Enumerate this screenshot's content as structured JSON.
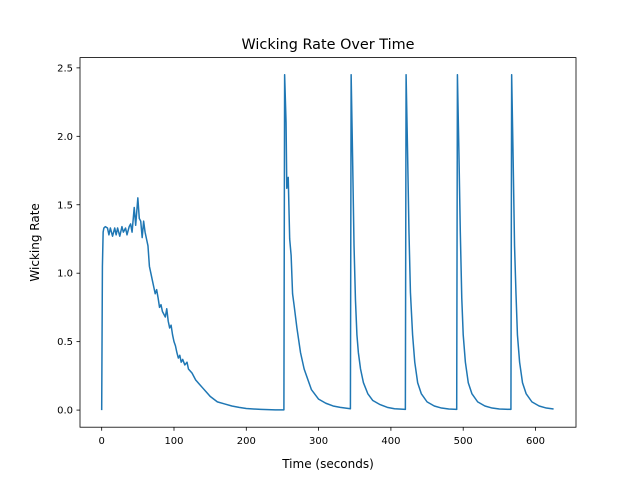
{
  "chart_data": {
    "type": "line",
    "title": "Wicking Rate Over Time",
    "xlabel": "Time (seconds)",
    "ylabel": "Wicking Rate",
    "xlim": [
      -30,
      656
    ],
    "ylim": [
      -0.125,
      2.575
    ],
    "xticks": [
      0,
      100,
      200,
      300,
      400,
      500,
      600
    ],
    "xtick_labels": [
      "0",
      "100",
      "200",
      "300",
      "400",
      "500",
      "600"
    ],
    "yticks": [
      0.0,
      0.5,
      1.0,
      1.5,
      2.0,
      2.5
    ],
    "ytick_labels": [
      "0.0",
      "0.5",
      "1.0",
      "1.5",
      "2.0",
      "2.5"
    ],
    "grid": false,
    "series_color": "#1f77b4",
    "series": [
      {
        "x": [
          0,
          1,
          2,
          3,
          5,
          8,
          10,
          12,
          15,
          18,
          20,
          22,
          25,
          28,
          30,
          33,
          35,
          38,
          40,
          42,
          45,
          47,
          50,
          52,
          54,
          56,
          58,
          60,
          62,
          64,
          66,
          68,
          70,
          72,
          74,
          76,
          78,
          80,
          82,
          84,
          86,
          88,
          90,
          92,
          94,
          96,
          98,
          100,
          102,
          104,
          106,
          108,
          110,
          112,
          115,
          118,
          120,
          125,
          130,
          135,
          140,
          145,
          150,
          155,
          160,
          170,
          180,
          190,
          200,
          210,
          220,
          230,
          240,
          252,
          253,
          255,
          256,
          258,
          260,
          262,
          264,
          266,
          270,
          275,
          280,
          290,
          300,
          310,
          320,
          330,
          344,
          345,
          347,
          349,
          351,
          353,
          355,
          358,
          362,
          368,
          375,
          385,
          395,
          405,
          420,
          421,
          423,
          425,
          427,
          430,
          433,
          437,
          442,
          450,
          460,
          470,
          480,
          491,
          492,
          494,
          496,
          498,
          500,
          503,
          507,
          512,
          520,
          530,
          540,
          550,
          566,
          567,
          569,
          571,
          573,
          575,
          578,
          582,
          587,
          595,
          605,
          615,
          625
        ],
        "y": [
          0.0,
          1.05,
          1.3,
          1.33,
          1.34,
          1.33,
          1.28,
          1.33,
          1.27,
          1.33,
          1.28,
          1.33,
          1.27,
          1.34,
          1.3,
          1.33,
          1.28,
          1.34,
          1.36,
          1.3,
          1.48,
          1.35,
          1.55,
          1.4,
          1.38,
          1.26,
          1.38,
          1.3,
          1.25,
          1.2,
          1.05,
          1.0,
          0.95,
          0.9,
          0.85,
          0.88,
          0.82,
          0.75,
          0.77,
          0.72,
          0.7,
          0.68,
          0.74,
          0.65,
          0.6,
          0.62,
          0.55,
          0.5,
          0.47,
          0.42,
          0.38,
          0.4,
          0.35,
          0.37,
          0.33,
          0.35,
          0.3,
          0.27,
          0.22,
          0.19,
          0.16,
          0.13,
          0.1,
          0.08,
          0.06,
          0.045,
          0.03,
          0.02,
          0.012,
          0.008,
          0.005,
          0.003,
          0.002,
          0.002,
          2.45,
          2.1,
          1.62,
          1.7,
          1.25,
          1.13,
          0.85,
          0.77,
          0.6,
          0.42,
          0.3,
          0.15,
          0.08,
          0.05,
          0.03,
          0.02,
          0.01,
          2.45,
          1.85,
          1.2,
          0.8,
          0.55,
          0.42,
          0.3,
          0.2,
          0.12,
          0.07,
          0.04,
          0.02,
          0.01,
          0.005,
          2.45,
          1.9,
          1.3,
          0.86,
          0.55,
          0.35,
          0.2,
          0.12,
          0.06,
          0.03,
          0.015,
          0.008,
          0.005,
          2.45,
          1.9,
          1.3,
          0.82,
          0.55,
          0.35,
          0.2,
          0.12,
          0.06,
          0.03,
          0.015,
          0.008,
          0.005,
          2.45,
          1.85,
          1.2,
          0.85,
          0.55,
          0.35,
          0.2,
          0.12,
          0.06,
          0.03,
          0.015,
          0.008
        ]
      }
    ]
  }
}
